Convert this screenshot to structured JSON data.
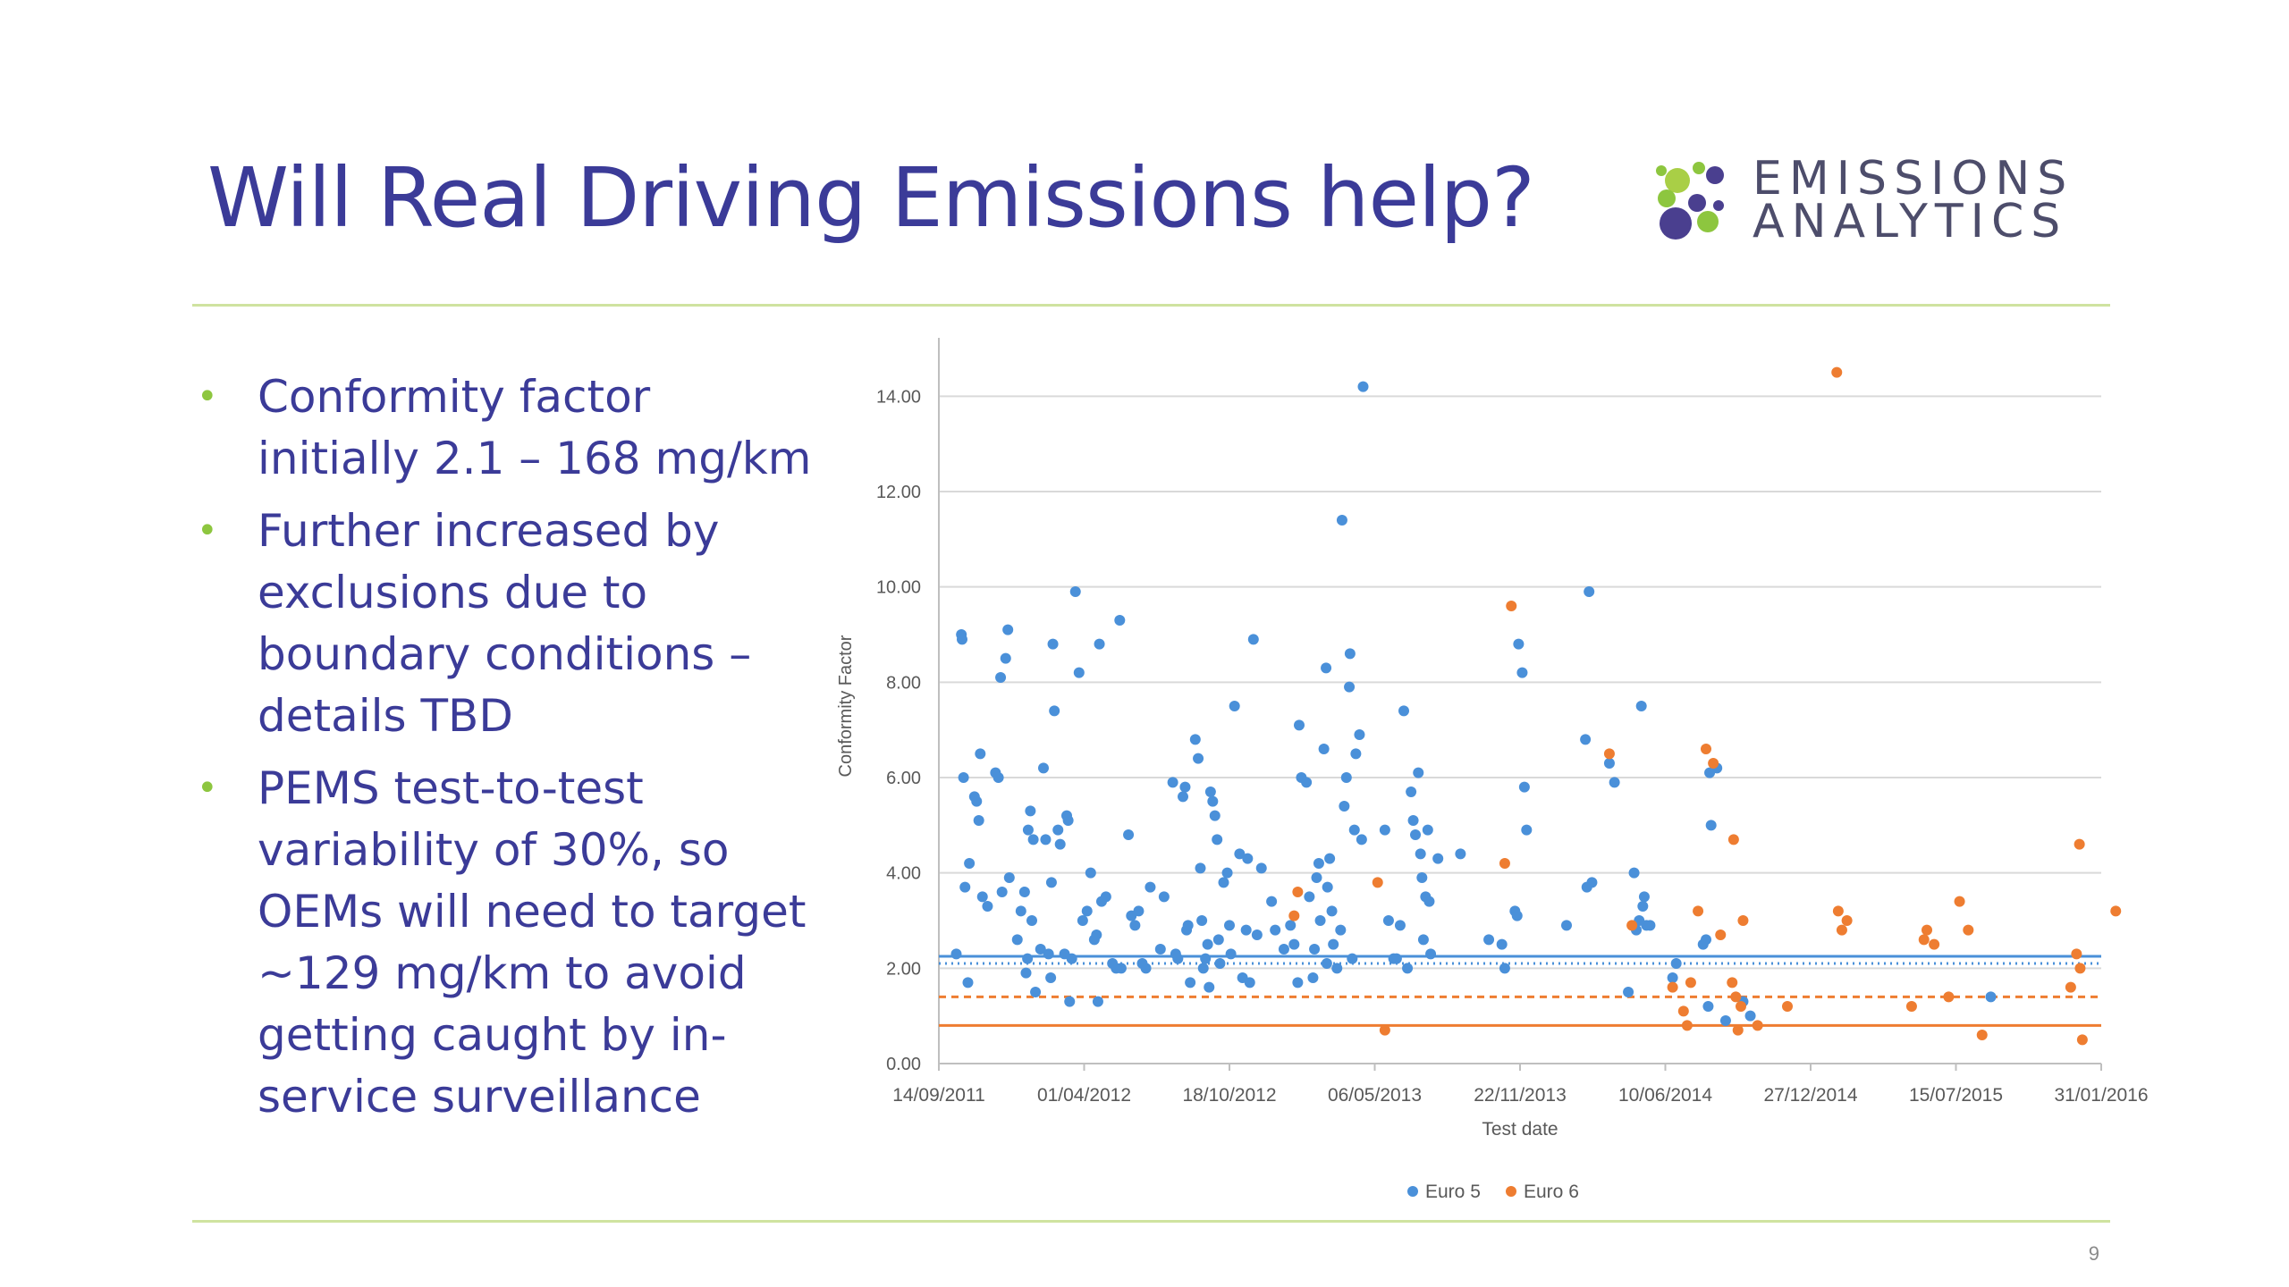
{
  "slide": {
    "title": "Will Real Driving Emissions help?",
    "logo_line1": "EMISSIONS",
    "logo_line2": "ANALYTICS",
    "bullets": [
      "Conformity factor initially 2.1 – 168 mg/km",
      "Further increased by exclusions due to boundary conditions – details TBD",
      "PEMS test-to-test variability of 30%, so OEMs will need to target ~129 mg/km to avoid getting caught by in-service surveillance"
    ],
    "page_number": "9"
  },
  "colors": {
    "title": "#3b3b98",
    "bullet": "#8dc63f",
    "rule": "#cfe3a0",
    "euro5": "#4a90d9",
    "euro6": "#ee7d31"
  },
  "chart_data": {
    "type": "scatter",
    "xlabel": "Test date",
    "ylabel": "Conformity Factor",
    "x_ticks": [
      "14/09/2011",
      "01/04/2012",
      "18/10/2012",
      "06/05/2013",
      "22/11/2013",
      "10/06/2014",
      "27/12/2014",
      "15/07/2015",
      "31/01/2016"
    ],
    "y_ticks": [
      "0.00",
      "2.00",
      "4.00",
      "6.00",
      "8.00",
      "10.00",
      "12.00",
      "14.00"
    ],
    "xlim": [
      "14/09/2011",
      "31/01/2016"
    ],
    "ylim": [
      0,
      15
    ],
    "grid": true,
    "legend_position": "bottom",
    "reference_lines": [
      {
        "series": "Euro 5",
        "style": "solid",
        "value": 2.25
      },
      {
        "series": "Euro 5",
        "style": "dotted",
        "value": 2.1
      },
      {
        "series": "Euro 6",
        "style": "dashed",
        "value": 1.4
      },
      {
        "series": "Euro 6",
        "style": "solid",
        "value": 0.8
      }
    ],
    "series": [
      {
        "name": "Euro 5",
        "color": "#4a90d9",
        "points": [
          [
            "2011-10-08",
            2.3
          ],
          [
            "2011-10-15",
            9.0
          ],
          [
            "2011-10-16",
            8.9
          ],
          [
            "2011-10-18",
            6.0
          ],
          [
            "2011-10-20",
            3.7
          ],
          [
            "2011-10-24",
            1.7
          ],
          [
            "2011-10-26",
            4.2
          ],
          [
            "2011-11-02",
            5.6
          ],
          [
            "2011-11-05",
            5.5
          ],
          [
            "2011-11-08",
            5.1
          ],
          [
            "2011-11-10",
            6.5
          ],
          [
            "2011-11-13",
            3.5
          ],
          [
            "2011-11-20",
            3.3
          ],
          [
            "2011-12-01",
            6.1
          ],
          [
            "2011-12-05",
            6.0
          ],
          [
            "2011-12-10",
            3.6
          ],
          [
            "2011-12-08",
            8.1
          ],
          [
            "2011-12-15",
            8.5
          ],
          [
            "2011-12-18",
            9.1
          ],
          [
            "2011-12-20",
            3.9
          ],
          [
            "2011-12-31",
            2.6
          ],
          [
            "2012-01-05",
            3.2
          ],
          [
            "2012-01-10",
            3.6
          ],
          [
            "2012-01-12",
            1.9
          ],
          [
            "2012-01-14",
            2.2
          ],
          [
            "2012-01-15",
            4.9
          ],
          [
            "2012-01-18",
            5.3
          ],
          [
            "2012-01-20",
            3.0
          ],
          [
            "2012-01-22",
            4.7
          ],
          [
            "2012-01-25",
            1.5
          ],
          [
            "2012-02-01",
            2.4
          ],
          [
            "2012-02-05",
            6.2
          ],
          [
            "2012-02-08",
            4.7
          ],
          [
            "2012-02-12",
            2.3
          ],
          [
            "2012-02-15",
            1.8
          ],
          [
            "2012-02-16",
            3.8
          ],
          [
            "2012-02-18",
            8.8
          ],
          [
            "2012-02-20",
            7.4
          ],
          [
            "2012-02-25",
            4.9
          ],
          [
            "2012-02-28",
            4.6
          ],
          [
            "2012-03-05",
            2.3
          ],
          [
            "2012-03-08",
            5.2
          ],
          [
            "2012-03-10",
            5.1
          ],
          [
            "2012-03-12",
            1.3
          ],
          [
            "2012-03-15",
            2.2
          ],
          [
            "2012-03-20",
            9.9
          ],
          [
            "2012-03-25",
            8.2
          ],
          [
            "2012-03-30",
            3.0
          ],
          [
            "2012-04-05",
            3.2
          ],
          [
            "2012-04-10",
            4.0
          ],
          [
            "2012-04-15",
            2.6
          ],
          [
            "2012-04-18",
            2.7
          ],
          [
            "2012-04-20",
            1.3
          ],
          [
            "2012-04-22",
            8.8
          ],
          [
            "2012-04-25",
            3.4
          ],
          [
            "2012-05-01",
            3.5
          ],
          [
            "2012-05-10",
            2.1
          ],
          [
            "2012-05-15",
            2.0
          ],
          [
            "2012-05-20",
            9.3
          ],
          [
            "2012-05-22",
            2.0
          ],
          [
            "2012-06-01",
            4.8
          ],
          [
            "2012-06-05",
            3.1
          ],
          [
            "2012-06-10",
            2.9
          ],
          [
            "2012-06-15",
            3.2
          ],
          [
            "2012-06-20",
            2.1
          ],
          [
            "2012-06-25",
            2.0
          ],
          [
            "2012-07-01",
            3.7
          ],
          [
            "2012-07-15",
            2.4
          ],
          [
            "2012-07-20",
            3.5
          ],
          [
            "2012-08-01",
            5.9
          ],
          [
            "2012-08-05",
            2.3
          ],
          [
            "2012-08-08",
            2.2
          ],
          [
            "2012-08-15",
            5.6
          ],
          [
            "2012-08-18",
            5.8
          ],
          [
            "2012-08-20",
            2.8
          ],
          [
            "2012-08-22",
            2.9
          ],
          [
            "2012-08-25",
            1.7
          ],
          [
            "2012-09-01",
            6.8
          ],
          [
            "2012-09-05",
            6.4
          ],
          [
            "2012-09-08",
            4.1
          ],
          [
            "2012-09-10",
            3.0
          ],
          [
            "2012-09-12",
            2.0
          ],
          [
            "2012-09-15",
            2.2
          ],
          [
            "2012-09-18",
            2.5
          ],
          [
            "2012-09-20",
            1.6
          ],
          [
            "2012-09-22",
            5.7
          ],
          [
            "2012-09-25",
            5.5
          ],
          [
            "2012-09-28",
            5.2
          ],
          [
            "2012-10-01",
            4.7
          ],
          [
            "2012-10-03",
            2.6
          ],
          [
            "2012-10-05",
            2.1
          ],
          [
            "2012-10-10",
            3.8
          ],
          [
            "2012-10-15",
            4.0
          ],
          [
            "2012-10-18",
            2.9
          ],
          [
            "2012-10-20",
            2.3
          ],
          [
            "2012-10-25",
            7.5
          ],
          [
            "2012-11-01",
            4.4
          ],
          [
            "2012-11-05",
            1.8
          ],
          [
            "2012-11-10",
            2.8
          ],
          [
            "2012-11-12",
            4.3
          ],
          [
            "2012-11-15",
            1.7
          ],
          [
            "2012-11-20",
            8.9
          ],
          [
            "2012-11-25",
            2.7
          ],
          [
            "2012-12-01",
            4.1
          ],
          [
            "2012-12-15",
            3.4
          ],
          [
            "2012-12-20",
            2.8
          ],
          [
            "2013-01-01",
            2.4
          ],
          [
            "2013-01-10",
            2.9
          ],
          [
            "2013-01-15",
            2.5
          ],
          [
            "2013-01-20",
            1.7
          ],
          [
            "2013-01-22",
            7.1
          ],
          [
            "2013-01-25",
            6.0
          ],
          [
            "2013-02-01",
            5.9
          ],
          [
            "2013-02-05",
            3.5
          ],
          [
            "2013-02-10",
            1.8
          ],
          [
            "2013-02-12",
            2.4
          ],
          [
            "2013-02-15",
            3.9
          ],
          [
            "2013-02-18",
            4.2
          ],
          [
            "2013-02-20",
            3.0
          ],
          [
            "2013-02-25",
            6.6
          ],
          [
            "2013-02-28",
            8.3
          ],
          [
            "2013-03-01",
            2.1
          ],
          [
            "2013-03-02",
            3.7
          ],
          [
            "2013-03-05",
            4.3
          ],
          [
            "2013-03-08",
            3.2
          ],
          [
            "2013-03-10",
            2.5
          ],
          [
            "2013-03-15",
            2.0
          ],
          [
            "2013-03-20",
            2.8
          ],
          [
            "2013-03-22",
            11.4
          ],
          [
            "2013-03-25",
            5.4
          ],
          [
            "2013-03-28",
            6.0
          ],
          [
            "2013-04-01",
            7.9
          ],
          [
            "2013-04-02",
            8.6
          ],
          [
            "2013-04-05",
            2.2
          ],
          [
            "2013-04-08",
            4.9
          ],
          [
            "2013-04-10",
            6.5
          ],
          [
            "2013-04-15",
            6.9
          ],
          [
            "2013-04-18",
            4.7
          ],
          [
            "2013-04-20",
            14.2
          ],
          [
            "2013-05-20",
            4.9
          ],
          [
            "2013-05-25",
            3.0
          ],
          [
            "2013-06-01",
            2.2
          ],
          [
            "2013-06-05",
            2.2
          ],
          [
            "2013-06-10",
            2.9
          ],
          [
            "2013-06-15",
            7.4
          ],
          [
            "2013-06-20",
            2.0
          ],
          [
            "2013-06-25",
            5.7
          ],
          [
            "2013-06-28",
            5.1
          ],
          [
            "2013-07-01",
            4.8
          ],
          [
            "2013-07-05",
            6.1
          ],
          [
            "2013-07-08",
            4.4
          ],
          [
            "2013-07-10",
            3.9
          ],
          [
            "2013-07-12",
            2.6
          ],
          [
            "2013-07-15",
            3.5
          ],
          [
            "2013-07-18",
            4.9
          ],
          [
            "2013-07-20",
            3.4
          ],
          [
            "2013-07-22",
            2.3
          ],
          [
            "2013-08-01",
            4.3
          ],
          [
            "2013-09-01",
            4.4
          ],
          [
            "2013-10-10",
            2.6
          ],
          [
            "2013-10-28",
            2.5
          ],
          [
            "2013-11-01",
            2.0
          ],
          [
            "2013-11-15",
            3.2
          ],
          [
            "2013-11-18",
            3.1
          ],
          [
            "2013-11-20",
            8.8
          ],
          [
            "2013-11-25",
            8.2
          ],
          [
            "2013-11-28",
            5.8
          ],
          [
            "2013-12-01",
            4.9
          ],
          [
            "2014-01-25",
            2.9
          ],
          [
            "2014-02-20",
            6.8
          ],
          [
            "2014-02-22",
            3.7
          ],
          [
            "2014-02-25",
            9.9
          ],
          [
            "2014-03-01",
            3.8
          ],
          [
            "2014-03-25",
            6.3
          ],
          [
            "2014-04-01",
            5.9
          ],
          [
            "2014-04-20",
            1.5
          ],
          [
            "2014-04-28",
            4.0
          ],
          [
            "2014-05-01",
            2.8
          ],
          [
            "2014-05-05",
            3.0
          ],
          [
            "2014-05-08",
            7.5
          ],
          [
            "2014-05-10",
            3.3
          ],
          [
            "2014-05-12",
            3.5
          ],
          [
            "2014-05-15",
            2.9
          ],
          [
            "2014-05-20",
            2.9
          ],
          [
            "2014-06-20",
            1.8
          ],
          [
            "2014-06-25",
            2.1
          ],
          [
            "2014-08-01",
            2.5
          ],
          [
            "2014-08-05",
            2.6
          ],
          [
            "2014-08-08",
            1.2
          ],
          [
            "2014-08-10",
            6.1
          ],
          [
            "2014-08-12",
            5.0
          ],
          [
            "2014-08-20",
            6.2
          ],
          [
            "2014-09-01",
            0.9
          ],
          [
            "2014-09-25",
            1.3
          ],
          [
            "2014-10-05",
            1.0
          ],
          [
            "2015-09-01",
            1.4
          ]
        ]
      },
      {
        "name": "Euro 6",
        "color": "#ee7d31",
        "points": [
          [
            "2013-01-15",
            3.1
          ],
          [
            "2013-01-20",
            3.6
          ],
          [
            "2013-05-10",
            3.8
          ],
          [
            "2013-05-20",
            0.7
          ],
          [
            "2013-11-01",
            4.2
          ],
          [
            "2013-11-10",
            9.6
          ],
          [
            "2014-03-25",
            6.5
          ],
          [
            "2014-04-25",
            2.9
          ],
          [
            "2014-06-20",
            1.6
          ],
          [
            "2014-07-05",
            1.1
          ],
          [
            "2014-07-10",
            0.8
          ],
          [
            "2014-07-15",
            1.7
          ],
          [
            "2014-07-25",
            3.2
          ],
          [
            "2014-08-05",
            6.6
          ],
          [
            "2014-08-15",
            6.3
          ],
          [
            "2014-08-25",
            2.7
          ],
          [
            "2014-09-10",
            1.7
          ],
          [
            "2014-09-12",
            4.7
          ],
          [
            "2014-09-15",
            1.4
          ],
          [
            "2014-09-18",
            0.7
          ],
          [
            "2014-09-22",
            1.2
          ],
          [
            "2014-09-25",
            3.0
          ],
          [
            "2014-10-15",
            0.8
          ],
          [
            "2014-11-25",
            1.2
          ],
          [
            "2015-02-01",
            14.5
          ],
          [
            "2015-02-03",
            3.2
          ],
          [
            "2015-02-08",
            2.8
          ],
          [
            "2015-02-15",
            3.0
          ],
          [
            "2015-05-15",
            1.2
          ],
          [
            "2015-06-01",
            2.6
          ],
          [
            "2015-06-05",
            2.8
          ],
          [
            "2015-06-15",
            2.5
          ],
          [
            "2015-07-05",
            1.4
          ],
          [
            "2015-07-20",
            3.4
          ],
          [
            "2015-08-01",
            2.8
          ],
          [
            "2015-08-20",
            0.6
          ],
          [
            "2015-12-20",
            1.6
          ],
          [
            "2015-12-28",
            2.3
          ],
          [
            "2016-01-01",
            4.6
          ],
          [
            "2016-01-02",
            2.0
          ],
          [
            "2016-01-05",
            0.5
          ],
          [
            "2016-02-20",
            3.2
          ]
        ]
      }
    ]
  }
}
